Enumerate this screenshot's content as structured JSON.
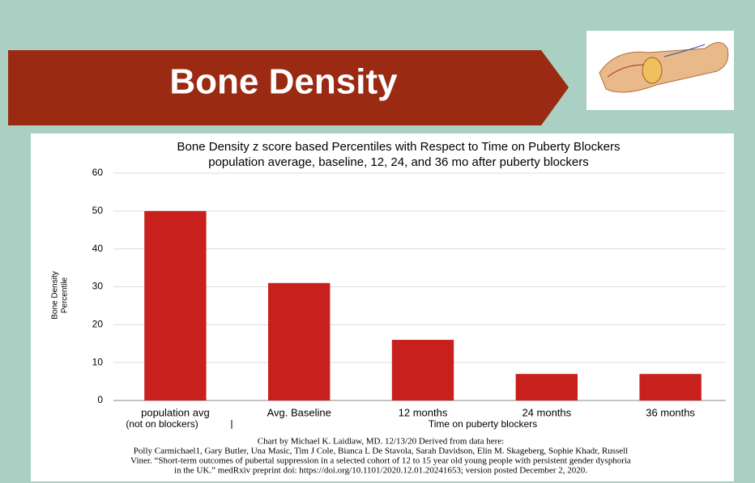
{
  "header": {
    "title": "Bone Density"
  },
  "chart_data": {
    "type": "bar",
    "title": "Bone Density z score based Percentiles with Respect to Time on Puberty Blockers",
    "subtitle": "population average, baseline, 12, 24, and 36 mo after puberty blockers",
    "ylabel": [
      "Bone Density",
      "Percentile"
    ],
    "categories": [
      "population avg",
      "Avg. Baseline",
      "12 months",
      "24 months",
      "36 months"
    ],
    "values": [
      50,
      31,
      16,
      7,
      7
    ],
    "color": "#c8201c",
    "ylim": [
      0,
      60
    ],
    "yticks": [
      0,
      10,
      20,
      30,
      40,
      50,
      60
    ],
    "grid": true,
    "annotations": [
      "(not on blockers)",
      "Time on puberty blockers"
    ],
    "source": [
      "Chart by Michael K. Laidlaw, MD. 12/13/20 Derived from data here:",
      "Polly Carmichael1, Gary Butler, Una Masic, Tim J Cole, Bianca L De Stavola, Sarah Davidson, Elin M. Skageberg, Sophie Khadr, Russell",
      "Viner.  “Short-term outcomes of pubertal suppression in a selected cohort of 12 to 15 year old young people with persistent gender dysphoria",
      "in the UK.” medRxiv preprint doi: https://doi.org/10.1101/2020.12.01.20241653; version posted December 2, 2020."
    ]
  }
}
